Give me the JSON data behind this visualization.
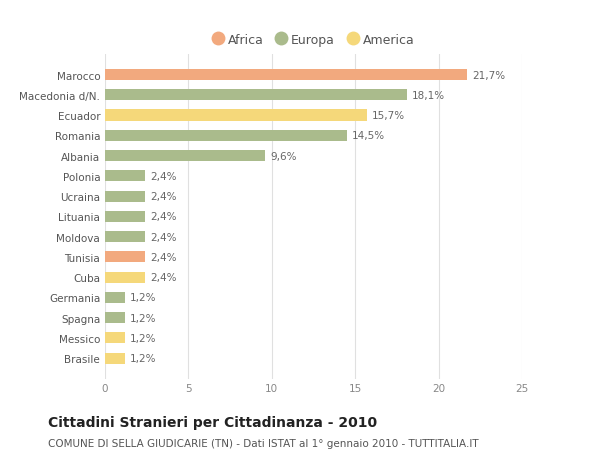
{
  "categories": [
    "Marocco",
    "Macedonia d/N.",
    "Ecuador",
    "Romania",
    "Albania",
    "Polonia",
    "Ucraina",
    "Lituania",
    "Moldova",
    "Tunisia",
    "Cuba",
    "Germania",
    "Spagna",
    "Messico",
    "Brasile"
  ],
  "values": [
    21.7,
    18.1,
    15.7,
    14.5,
    9.6,
    2.4,
    2.4,
    2.4,
    2.4,
    2.4,
    2.4,
    1.2,
    1.2,
    1.2,
    1.2
  ],
  "continents": [
    "Africa",
    "Europa",
    "America",
    "Europa",
    "Europa",
    "Europa",
    "Europa",
    "Europa",
    "Europa",
    "Africa",
    "America",
    "Europa",
    "Europa",
    "America",
    "America"
  ],
  "color_map": {
    "Africa": "#F2A97E",
    "Europa": "#AABB8C",
    "America": "#F5D87A"
  },
  "labels": [
    "21,7%",
    "18,1%",
    "15,7%",
    "14,5%",
    "9,6%",
    "2,4%",
    "2,4%",
    "2,4%",
    "2,4%",
    "2,4%",
    "2,4%",
    "1,2%",
    "1,2%",
    "1,2%",
    "1,2%"
  ],
  "legend_items": [
    {
      "label": "Africa",
      "color": "#F2A97E"
    },
    {
      "label": "Europa",
      "color": "#AABB8C"
    },
    {
      "label": "America",
      "color": "#F5D87A"
    }
  ],
  "title": "Cittadini Stranieri per Cittadinanza - 2010",
  "subtitle": "COMUNE DI SELLA GIUDICARIE (TN) - Dati ISTAT al 1° gennaio 2010 - TUTTITALIA.IT",
  "xlim": [
    0,
    25
  ],
  "xticks": [
    0,
    5,
    10,
    15,
    20,
    25
  ],
  "background_color": "#ffffff",
  "grid_color": "#e0e0e0",
  "bar_height": 0.55,
  "label_fontsize": 7.5,
  "title_fontsize": 10,
  "subtitle_fontsize": 7.5,
  "tick_fontsize": 7.5,
  "legend_fontsize": 9,
  "ytick_fontsize": 7.5
}
